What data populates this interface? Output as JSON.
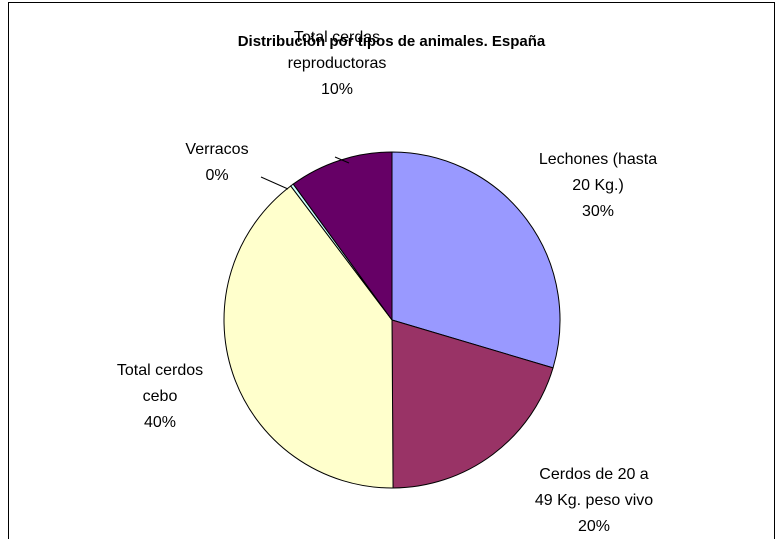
{
  "chart_data": {
    "type": "pie",
    "title": "Distribución por tipos de animales. España",
    "categories": [
      "Lechones (hasta 20 Kg.)",
      "Cerdos de 20 a 49 Kg. peso vivo",
      "Total cerdos cebo",
      "Verracos",
      "Total cerdas reproductoras"
    ],
    "values": [
      29.6,
      20.3,
      39.8,
      0.3,
      10.0
    ],
    "value_labels": [
      "30%",
      "20%",
      "40%",
      "0%",
      "10%"
    ],
    "colors": [
      "#9999ff",
      "#993366",
      "#ffffcc",
      "#ccffff",
      "#660066"
    ]
  }
}
